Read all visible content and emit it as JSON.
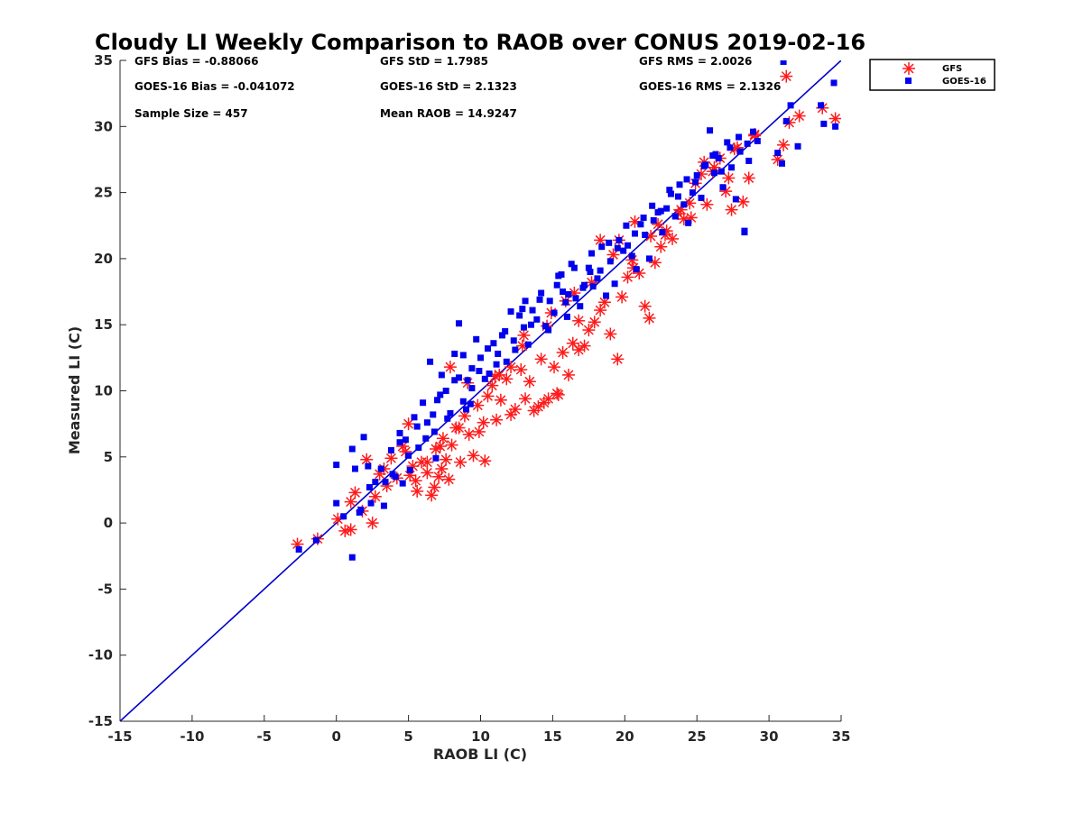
{
  "chart_data": {
    "type": "scatter",
    "title": "Cloudy LI Weekly Comparison to RAOB over CONUS 2019-02-16",
    "xlabel": "RAOB LI (C)",
    "ylabel": "Measured LI (C)",
    "xlim": [
      -15,
      35
    ],
    "ylim": [
      -15,
      35
    ],
    "xticks": [
      "-15",
      "-10",
      "-5",
      "0",
      "5",
      "10",
      "15",
      "20",
      "25",
      "30",
      "35"
    ],
    "yticks": [
      "-15",
      "-10",
      "-5",
      "0",
      "5",
      "10",
      "15",
      "20",
      "25",
      "30",
      "35"
    ],
    "grid": false,
    "legend_position": "outside top-right",
    "reference_line": {
      "x": [
        -15,
        35
      ],
      "y": [
        -15,
        35
      ],
      "color": "#0000cc"
    },
    "annotations": [
      "GFS Bias = -0.88066",
      "GFS StD = 1.7985",
      "GFS RMS = 2.0026",
      "GOES-16 Bias = -0.041072",
      "GOES-16 StD = 2.1323",
      "GOES-16 RMS = 2.1326",
      "Sample Size = 457",
      "Mean RAOB = 14.9247"
    ],
    "series": [
      {
        "name": "GFS",
        "marker": "asterisk",
        "color": "#ff1a1a",
        "x": [
          -2.7,
          -1.3,
          0.1,
          0.6,
          1.0,
          1.3,
          1.0,
          1.8,
          2.1,
          2.5,
          2.7,
          3.0,
          3.5,
          3.8,
          4.2,
          4.6,
          5.0,
          5.3,
          5.5,
          5.9,
          6.3,
          6.6,
          6.8,
          7.1,
          7.3,
          7.6,
          7.8,
          6.9,
          7.4,
          8.0,
          8.3,
          8.6,
          8.9,
          9.2,
          9.5,
          9.8,
          10.2,
          10.5,
          10.8,
          11.1,
          11.4,
          11.8,
          12.1,
          12.4,
          12.8,
          13.1,
          13.4,
          13.7,
          14.0,
          14.4,
          14.7,
          15.1,
          15.4,
          15.7,
          16.1,
          16.4,
          16.8,
          17.2,
          17.5,
          17.9,
          18.3,
          18.6,
          19.0,
          19.5,
          19.8,
          20.2,
          20.6,
          21.0,
          21.4,
          21.7,
          22.1,
          22.5,
          22.9,
          23.3,
          23.7,
          24.1,
          24.5,
          24.9,
          25.3,
          25.7,
          26.2,
          26.6,
          27.0,
          27.4,
          27.8,
          28.2,
          28.6,
          29.0,
          30.6,
          31.0,
          31.4,
          32.1,
          33.7,
          34.6,
          10.3,
          12.1,
          14.2,
          15.3,
          16.8,
          19.6,
          21.8,
          4.8,
          5.6,
          6.3,
          7.9,
          9.1,
          11.3,
          13.0,
          14.9,
          16.5,
          18.3,
          20.7,
          22.8,
          24.6,
          26.1,
          27.6,
          29.0,
          31.2,
          3.3,
          5.1,
          7.2,
          8.5,
          9.9,
          11.0,
          12.9,
          14.6,
          15.9,
          17.7,
          19.2,
          20.5,
          22.3,
          23.9,
          25.5,
          27.2
        ],
        "y": [
          -1.6,
          -1.2,
          0.3,
          -0.6,
          -0.5,
          2.3,
          1.6,
          0.9,
          4.8,
          0.0,
          2.0,
          3.7,
          2.8,
          4.9,
          3.4,
          5.8,
          7.5,
          4.3,
          3.2,
          4.6,
          3.8,
          2.1,
          2.7,
          3.5,
          4.1,
          4.8,
          3.3,
          5.6,
          6.4,
          5.9,
          7.2,
          4.6,
          8.1,
          6.7,
          5.1,
          8.9,
          7.6,
          9.6,
          10.4,
          7.8,
          9.3,
          10.9,
          8.2,
          8.6,
          11.6,
          9.4,
          10.7,
          8.5,
          8.8,
          9.1,
          9.4,
          11.8,
          9.7,
          12.9,
          11.2,
          13.6,
          13.1,
          13.4,
          14.6,
          15.2,
          16.1,
          16.7,
          14.3,
          12.4,
          17.1,
          18.6,
          19.3,
          18.9,
          16.4,
          15.5,
          19.7,
          20.9,
          22.1,
          21.5,
          23.4,
          23.0,
          24.2,
          25.7,
          26.4,
          24.1,
          26.9,
          27.6,
          25.1,
          23.7,
          28.4,
          24.3,
          26.1,
          29.4,
          27.5,
          28.6,
          30.3,
          30.8,
          31.4,
          30.6,
          4.7,
          11.8,
          12.4,
          9.8,
          15.3,
          21.4,
          21.7,
          5.4,
          2.4,
          4.6,
          11.8,
          10.6,
          11.2,
          14.2,
          15.9,
          17.4,
          21.4,
          22.8,
          21.8,
          23.1,
          26.6,
          28.3,
          29.3,
          33.8,
          4.1,
          3.6,
          5.8,
          7.2,
          6.9,
          11.1,
          13.4,
          14.9,
          16.8,
          18.2,
          20.3,
          19.9,
          22.6,
          23.7,
          27.3,
          26.1
        ]
      },
      {
        "name": "GOES-16",
        "marker": "square",
        "color": "#0000ee",
        "x": [
          -2.6,
          -1.4,
          0.0,
          0.0,
          0.5,
          1.1,
          1.3,
          1.6,
          1.9,
          2.2,
          2.4,
          2.7,
          3.1,
          3.4,
          3.8,
          4.1,
          4.4,
          4.8,
          5.1,
          5.4,
          5.7,
          6.0,
          6.3,
          6.5,
          6.8,
          7.0,
          7.3,
          7.6,
          7.9,
          8.2,
          8.5,
          8.8,
          9.1,
          9.4,
          9.7,
          10.0,
          10.3,
          10.6,
          10.9,
          11.2,
          11.5,
          11.8,
          12.1,
          12.4,
          12.7,
          13.0,
          13.3,
          13.6,
          13.9,
          14.2,
          14.5,
          14.8,
          15.1,
          15.4,
          15.7,
          16.0,
          16.3,
          16.6,
          16.9,
          17.2,
          17.5,
          17.8,
          18.1,
          18.4,
          18.7,
          19.0,
          19.3,
          19.6,
          19.9,
          20.2,
          20.5,
          20.8,
          21.1,
          21.4,
          21.7,
          22.0,
          22.3,
          22.6,
          22.9,
          23.2,
          23.5,
          23.8,
          24.1,
          24.4,
          24.7,
          25.0,
          25.3,
          25.6,
          25.9,
          26.2,
          26.5,
          26.8,
          27.1,
          27.4,
          27.7,
          28.0,
          28.3,
          28.6,
          28.9,
          29.2,
          30.6,
          30.9,
          31.2,
          31.5,
          32.0,
          33.6,
          33.8,
          34.5,
          34.6,
          31.0,
          6.2,
          6.7,
          7.2,
          8.2,
          8.8,
          9.3,
          9.9,
          10.5,
          11.1,
          11.7,
          12.3,
          12.9,
          13.5,
          14.1,
          14.7,
          15.3,
          15.9,
          16.5,
          17.1,
          17.7,
          18.3,
          18.9,
          19.5,
          20.1,
          20.7,
          21.3,
          21.9,
          22.5,
          23.1,
          23.7,
          24.3,
          24.9,
          25.5,
          26.1,
          26.7,
          27.3,
          27.9,
          28.5,
          1.7,
          2.3,
          3.9,
          4.4,
          5.0,
          5.6,
          8.5,
          9.4,
          13.1,
          15.6,
          16.1,
          17.6,
          28.3,
          26.3,
          1.1,
          3.3,
          4.6,
          6.9,
          7.7,
          9.0
        ],
        "y": [
          -2.0,
          -1.3,
          4.4,
          1.5,
          0.5,
          -2.6,
          4.1,
          0.8,
          6.5,
          4.3,
          1.5,
          3.1,
          4.1,
          3.1,
          5.5,
          3.5,
          6.1,
          6.3,
          4.0,
          8.0,
          5.7,
          9.1,
          7.6,
          12.2,
          6.9,
          9.3,
          11.2,
          10.0,
          8.3,
          12.8,
          11.0,
          9.2,
          10.8,
          11.7,
          13.9,
          12.5,
          10.9,
          11.3,
          13.6,
          12.8,
          14.2,
          12.2,
          16.0,
          13.1,
          15.7,
          14.8,
          13.5,
          16.1,
          15.4,
          17.4,
          14.9,
          16.8,
          15.9,
          18.7,
          17.5,
          15.6,
          19.6,
          17.0,
          16.4,
          18.0,
          19.3,
          17.9,
          18.5,
          20.9,
          17.2,
          19.8,
          18.1,
          21.4,
          20.6,
          21.0,
          20.2,
          19.2,
          22.6,
          21.8,
          20.0,
          22.9,
          23.5,
          22.0,
          23.8,
          24.9,
          23.2,
          25.6,
          24.1,
          22.7,
          25.0,
          26.3,
          24.6,
          27.1,
          29.7,
          26.5,
          27.6,
          25.4,
          28.8,
          26.9,
          24.5,
          28.1,
          22.0,
          27.4,
          29.6,
          28.9,
          28.0,
          27.2,
          30.4,
          31.6,
          28.5,
          31.6,
          30.2,
          33.3,
          30.0,
          34.9,
          6.4,
          8.2,
          9.7,
          10.8,
          12.7,
          9.0,
          11.5,
          13.2,
          12.0,
          14.5,
          13.8,
          16.2,
          15.0,
          16.9,
          14.6,
          18.0,
          16.7,
          19.3,
          17.8,
          20.4,
          19.1,
          21.2,
          20.8,
          22.5,
          21.9,
          23.1,
          24.0,
          23.6,
          25.2,
          24.7,
          26.0,
          25.8,
          27.0,
          27.8,
          26.6,
          28.4,
          29.2,
          28.7,
          1.0,
          2.7,
          3.7,
          6.8,
          5.1,
          7.3,
          15.1,
          10.2,
          16.8,
          18.8,
          17.3,
          19.0,
          22.1,
          27.9,
          5.6,
          1.3,
          3.0,
          4.9,
          7.9,
          8.6
        ]
      }
    ]
  }
}
